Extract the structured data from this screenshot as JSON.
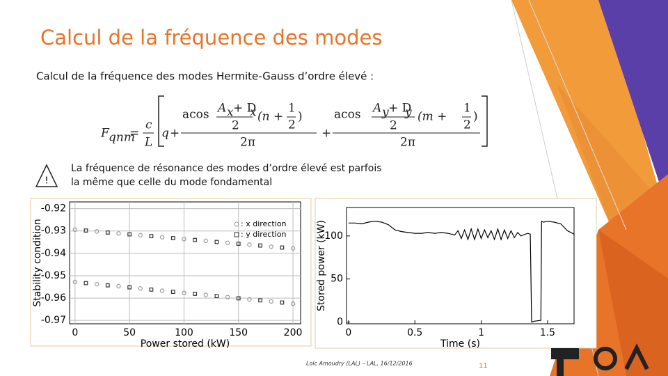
{
  "slide": {
    "title": "Calcul de la fréquence des modes",
    "intro": "Calcul de la fréquence des modes Hermite-Gauss d’ordre élevé :",
    "warning": {
      "icon": "!",
      "lines": [
        "La fréquence de résonance des modes d’ordre élevé est parfois",
        "la même que celle du mode fondamental"
      ]
    },
    "footer": "Loïc Amoudry (LAL) – LAL, 16/12/2016",
    "page_number": "11"
  },
  "formula": {
    "parts": [
      "F",
      "qnm",
      "=",
      "c",
      "L",
      "q",
      "+",
      "acos",
      "A",
      "x",
      "+ D",
      "x",
      "2",
      "(n +",
      "1",
      "2",
      ")",
      "2π",
      "+",
      "acos",
      "A",
      "y",
      "+ D",
      "y",
      "2",
      "(m +",
      "1",
      "2",
      ")",
      "2π"
    ]
  },
  "chart_data": [
    {
      "type": "scatter",
      "x_label": "Power stored (kW)",
      "y_label": "Stability condition",
      "xlim": [
        -5,
        207
      ],
      "ylim": [
        -0.9715,
        -0.917
      ],
      "xticks": [
        0,
        50,
        100,
        150,
        200
      ],
      "yticks": [
        -0.92,
        -0.93,
        -0.94,
        -0.95,
        -0.96,
        -0.97
      ],
      "grid": true,
      "series": [
        {
          "name": ": x direction",
          "color": "#9a9a9a",
          "marker": "circle",
          "x": [
            0,
            20,
            40,
            60,
            80,
            100,
            120,
            140,
            160,
            180,
            200,
            0,
            20,
            40,
            60,
            80,
            100,
            120,
            140,
            160,
            180,
            200
          ],
          "values": [
            -0.9294,
            -0.9302,
            -0.9311,
            -0.9319,
            -0.9328,
            -0.9336,
            -0.9344,
            -0.9353,
            -0.9361,
            -0.937,
            -0.9378,
            -0.9528,
            -0.9538,
            -0.9547,
            -0.9557,
            -0.9567,
            -0.9577,
            -0.9586,
            -0.9596,
            -0.9606,
            -0.9615,
            -0.9625
          ]
        },
        {
          "name": ": y direction",
          "color": "#333333",
          "marker": "square",
          "x": [
            10,
            30,
            50,
            70,
            90,
            110,
            130,
            150,
            170,
            190,
            10,
            30,
            50,
            70,
            90,
            110,
            130,
            150,
            170,
            190
          ],
          "values": [
            -0.9298,
            -0.9307,
            -0.9315,
            -0.9323,
            -0.9332,
            -0.934,
            -0.9349,
            -0.9357,
            -0.9365,
            -0.9374,
            -0.9533,
            -0.9543,
            -0.9552,
            -0.9562,
            -0.9572,
            -0.9581,
            -0.9591,
            -0.9601,
            -0.961,
            -0.962
          ]
        }
      ]
    },
    {
      "type": "line",
      "x_label": "Time (s)",
      "y_label": "Stored power (kW)",
      "xlim": [
        -0.015,
        1.7
      ],
      "ylim": [
        -2,
        133
      ],
      "xticks": [
        0,
        0.5,
        1,
        1.5
      ],
      "yticks": [
        0,
        50,
        100
      ],
      "grid": false,
      "series": [
        {
          "color": "#000000",
          "x": [
            0,
            0.05,
            0.1,
            0.15,
            0.2,
            0.25,
            0.3,
            0.35,
            0.4,
            0.45,
            0.5,
            0.55,
            0.6,
            0.65,
            0.7,
            0.75,
            0.8,
            0.825,
            0.85,
            0.875,
            0.9,
            0.925,
            0.95,
            0.975,
            1.0,
            1.025,
            1.05,
            1.075,
            1.1,
            1.125,
            1.15,
            1.175,
            1.2,
            1.225,
            1.25,
            1.275,
            1.3,
            1.35,
            1.37,
            1.38,
            1.4,
            1.45,
            1.455,
            1.47,
            1.5,
            1.55,
            1.6,
            1.65,
            1.7
          ],
          "values": [
            115,
            115,
            114,
            116,
            117,
            116,
            113,
            107,
            105,
            104,
            103,
            103,
            104,
            103,
            104,
            103,
            101,
            106,
            97,
            107,
            96,
            108,
            96,
            108,
            97,
            107,
            98,
            106,
            96,
            108,
            96,
            107,
            97,
            106,
            98,
            104,
            100,
            103,
            102,
            0,
            1,
            2,
            117,
            116,
            117,
            116,
            114,
            106,
            102
          ]
        }
      ]
    }
  ]
}
